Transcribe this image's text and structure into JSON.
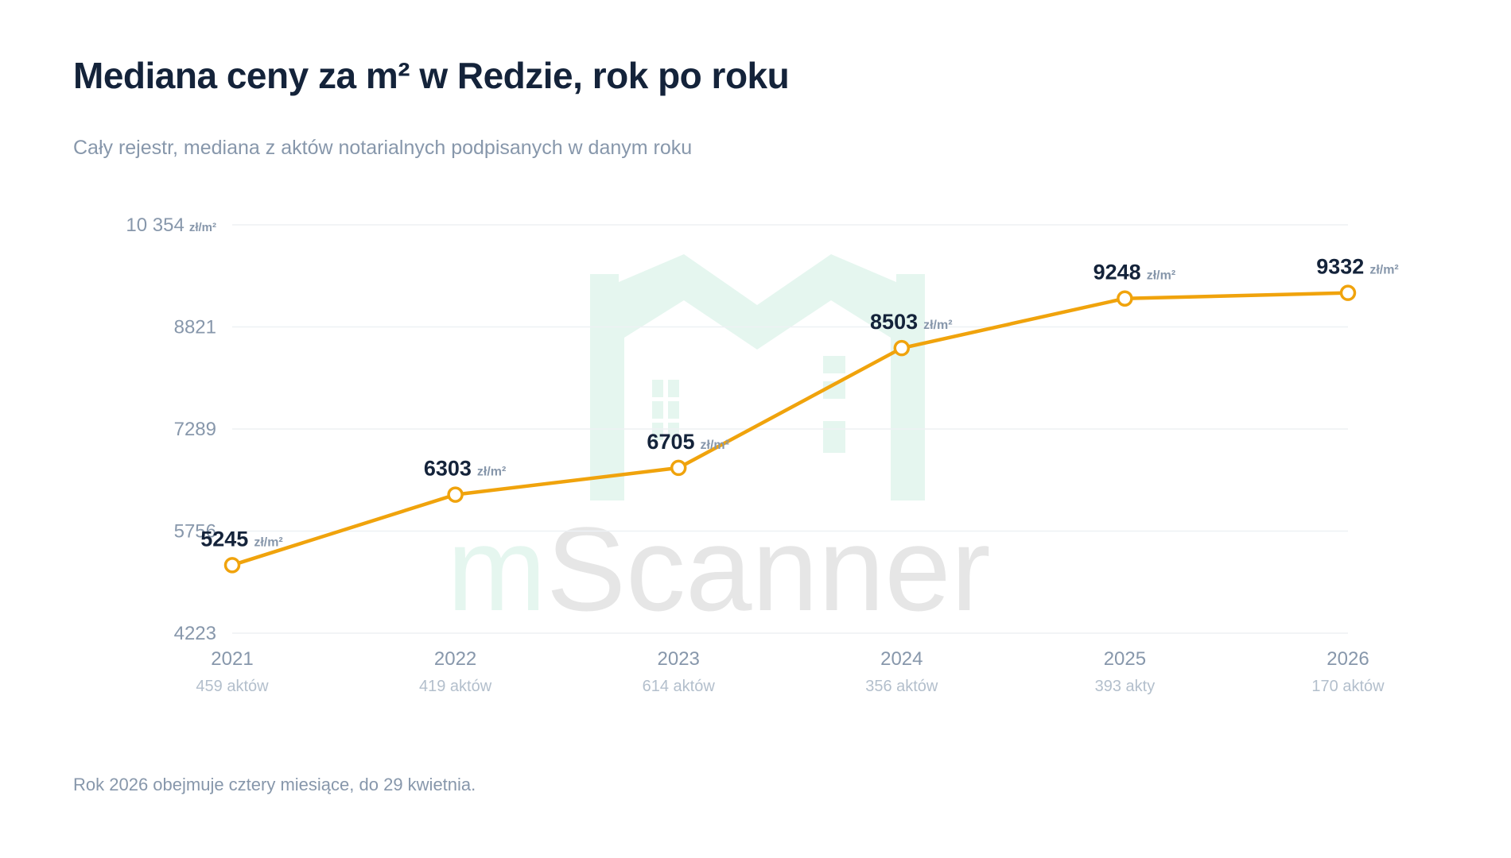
{
  "title": "Mediana ceny za m² w Redzie, rok po roku",
  "subtitle": "Cały rejestr, mediana z aktów notarialnych podpisanych w danym roku",
  "footnote": "Rok 2026 obejmuje cztery miesiące, do 29 kwietnia.",
  "watermark": {
    "text_a": "m",
    "text_b": "Scanner",
    "color_a": "#e5f6ef",
    "color_b": "#e6e6e6",
    "icon": "house-logo-icon"
  },
  "colors": {
    "line": "#f0a30c",
    "marker_fill": "#ffffff",
    "gridline": "#eef1f4"
  },
  "chart_data": {
    "type": "line",
    "title": "Mediana ceny za m² w Redzie, rok po roku",
    "subtitle": "Cały rejestr, mediana z aktów notarialnych podpisanych w danym roku",
    "categories": [
      "2021",
      "2022",
      "2023",
      "2024",
      "2025",
      "2026"
    ],
    "counts": [
      "459 aktów",
      "419 aktów",
      "614 aktów",
      "356 aktów",
      "393 akty",
      "170 aktów"
    ],
    "values": [
      5245,
      6303,
      6705,
      8503,
      9248,
      9332
    ],
    "unit": "zł/m²",
    "yticks": [
      {
        "value": 4223,
        "label": "4223"
      },
      {
        "value": 5756,
        "label": "5756"
      },
      {
        "value": 7289,
        "label": "7289"
      },
      {
        "value": 8821,
        "label": "8821"
      },
      {
        "value": 10354,
        "label": "10 354"
      }
    ],
    "ylim": [
      4223,
      10354
    ],
    "grid": true,
    "legend": "none"
  }
}
